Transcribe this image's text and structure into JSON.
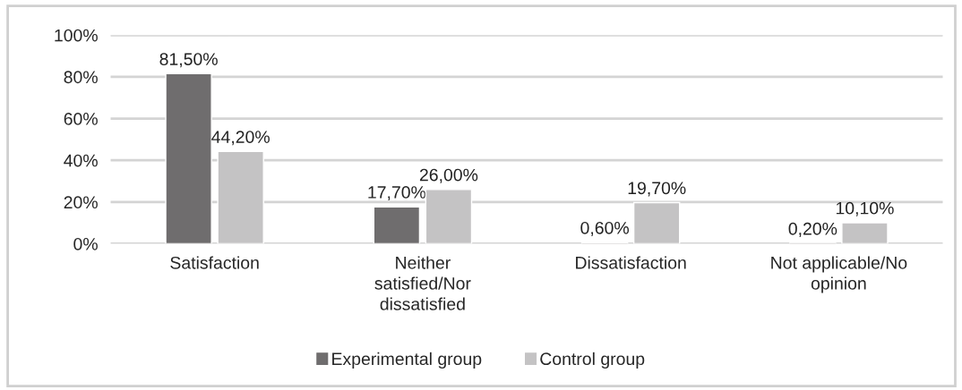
{
  "chart_data": {
    "type": "bar",
    "categories": [
      "Satisfaction",
      "Neither\nsatisfied/Nor\ndissatisfied",
      "Dissatisfaction",
      "Not applicable/No\nopinion"
    ],
    "series": [
      {
        "name": "Experimental group",
        "color": "#6f6d6e",
        "values": [
          81.5,
          17.7,
          0.6,
          0.2
        ],
        "value_labels": [
          "81,50%",
          "17,70%",
          "0,60%",
          "0,20%"
        ]
      },
      {
        "name": "Control group",
        "color": "#c4c3c4",
        "values": [
          44.2,
          26.0,
          19.7,
          10.1
        ],
        "value_labels": [
          "44,20%",
          "26,00%",
          "19,70%",
          "10,10%"
        ]
      }
    ],
    "ylim": [
      0,
      100
    ],
    "yticks": [
      {
        "value": 0,
        "label": "0%"
      },
      {
        "value": 20,
        "label": "20%"
      },
      {
        "value": 40,
        "label": "40%"
      },
      {
        "value": 60,
        "label": "60%"
      },
      {
        "value": 80,
        "label": "80%"
      },
      {
        "value": 100,
        "label": "100%"
      }
    ],
    "grid": "y",
    "legend": "bottom"
  }
}
